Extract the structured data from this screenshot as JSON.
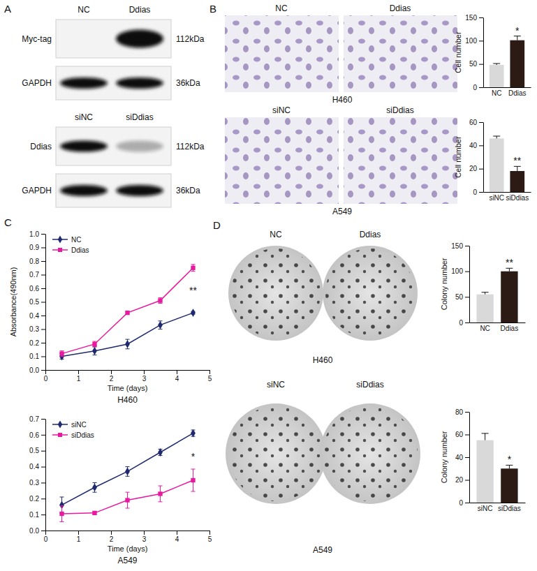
{
  "panels": {
    "A": {
      "letter": "A",
      "blots": [
        {
          "lanes": [
            "NC",
            "Ddias"
          ],
          "rows": [
            {
              "label": "Myc-tag",
              "size": "112kDa"
            },
            {
              "label": "GAPDH",
              "size": "36kDa"
            }
          ]
        },
        {
          "lanes": [
            "siNC",
            "siDdias"
          ],
          "rows": [
            {
              "label": "Ddias",
              "size": "112kDa"
            },
            {
              "label": "GAPDH",
              "size": "36kDa"
            }
          ]
        }
      ]
    },
    "B": {
      "letter": "B",
      "rows": [
        {
          "lanes": [
            "NC",
            "Ddias"
          ],
          "cell_line": "H460"
        },
        {
          "lanes": [
            "siNC",
            "siDdias"
          ],
          "cell_line": "A549"
        }
      ]
    },
    "C": {
      "letter": "C"
    },
    "D": {
      "letter": "D",
      "rows": [
        {
          "lanes": [
            "NC",
            "Ddias"
          ],
          "cell_line": "H460"
        },
        {
          "lanes": [
            "siNC",
            "siDdias"
          ],
          "cell_line": "A549"
        }
      ]
    }
  },
  "chart_data": [
    {
      "type": "bar",
      "categories": [
        "NC",
        "Ddias"
      ],
      "values": [
        48,
        101
      ],
      "errors": [
        3,
        9
      ],
      "colors": [
        "#d9d9d9",
        "#2b1b14"
      ],
      "ylim": [
        0,
        150
      ],
      "yticks": [
        0,
        50,
        100,
        150
      ],
      "y_label": "Cell number",
      "annotation": "*"
    },
    {
      "type": "bar",
      "categories": [
        "siNC",
        "siDdias"
      ],
      "values": [
        46,
        18
      ],
      "errors": [
        2,
        4
      ],
      "colors": [
        "#d9d9d9",
        "#2b1b14"
      ],
      "ylim": [
        0,
        60
      ],
      "yticks": [
        0,
        20,
        40,
        60
      ],
      "y_label": "Cell number",
      "annotation": "**"
    },
    {
      "type": "line",
      "title": "H460",
      "x": [
        0.5,
        1.5,
        2.5,
        3.5,
        4.5
      ],
      "series": [
        {
          "name": "NC",
          "color": "#1f2a6e",
          "marker": "diamond",
          "values": [
            0.1,
            0.14,
            0.19,
            0.33,
            0.42
          ],
          "errors": [
            0.02,
            0.03,
            0.035,
            0.03,
            0.01
          ]
        },
        {
          "name": "Ddias",
          "color": "#e8199e",
          "marker": "square",
          "values": [
            0.12,
            0.19,
            0.42,
            0.51,
            0.75
          ],
          "errors": [
            0.02,
            0.02,
            0.01,
            0.02,
            0.025
          ]
        }
      ],
      "xlim": [
        0,
        5
      ],
      "xticks": [
        0,
        1,
        2,
        3,
        4,
        5
      ],
      "ylim": [
        0,
        1
      ],
      "yticks": [
        {
          "value": 0,
          "label": "0.0"
        },
        0.1,
        0.2,
        0.3,
        0.4,
        0.5,
        0.6,
        0.7,
        0.8,
        0.9,
        {
          "value": 1,
          "label": "1.0"
        }
      ],
      "x_label": "Time (days)",
      "y_label": "Absorbance(490nm)",
      "legend": "top-left",
      "annotation": "**"
    },
    {
      "type": "line",
      "title": "A549",
      "x": [
        0.5,
        1.5,
        2.5,
        3.5,
        4.5
      ],
      "series": [
        {
          "name": "siNC",
          "color": "#1f2a6e",
          "marker": "diamond",
          "values": [
            0.16,
            0.27,
            0.37,
            0.49,
            0.61
          ],
          "errors": [
            0.05,
            0.03,
            0.03,
            0.02,
            0.02
          ]
        },
        {
          "name": "siDdias",
          "color": "#e8199e",
          "marker": "square",
          "values": [
            0.105,
            0.11,
            0.19,
            0.23,
            0.315
          ],
          "errors": [
            0.05,
            0.01,
            0.05,
            0.05,
            0.07
          ]
        }
      ],
      "xlim": [
        0,
        5
      ],
      "xticks": [
        0,
        1,
        2,
        3,
        4,
        5
      ],
      "ylim": [
        0,
        0.7
      ],
      "yticks": [
        {
          "value": 0,
          "label": "0.0"
        },
        0.1,
        0.2,
        0.3,
        0.4,
        0.5,
        0.6,
        0.7
      ],
      "x_label": "Time (days)",
      "legend": "top-left",
      "annotation": "*"
    },
    {
      "type": "bar",
      "categories": [
        "NC",
        "Ddias"
      ],
      "values": [
        55,
        100
      ],
      "errors": [
        4,
        6
      ],
      "colors": [
        "#d9d9d9",
        "#2b1b14"
      ],
      "ylim": [
        0,
        150
      ],
      "yticks": [
        0,
        50,
        100,
        150
      ],
      "y_label": "Colony number",
      "annotation": "**"
    },
    {
      "type": "bar",
      "categories": [
        "siNC",
        "siDdias"
      ],
      "values": [
        55,
        30
      ],
      "errors": [
        6,
        3
      ],
      "colors": [
        "#d9d9d9",
        "#2b1b14"
      ],
      "ylim": [
        0,
        80
      ],
      "yticks": [
        0,
        20,
        40,
        60,
        80
      ],
      "y_label": "Colony number",
      "annotation": "*"
    }
  ]
}
